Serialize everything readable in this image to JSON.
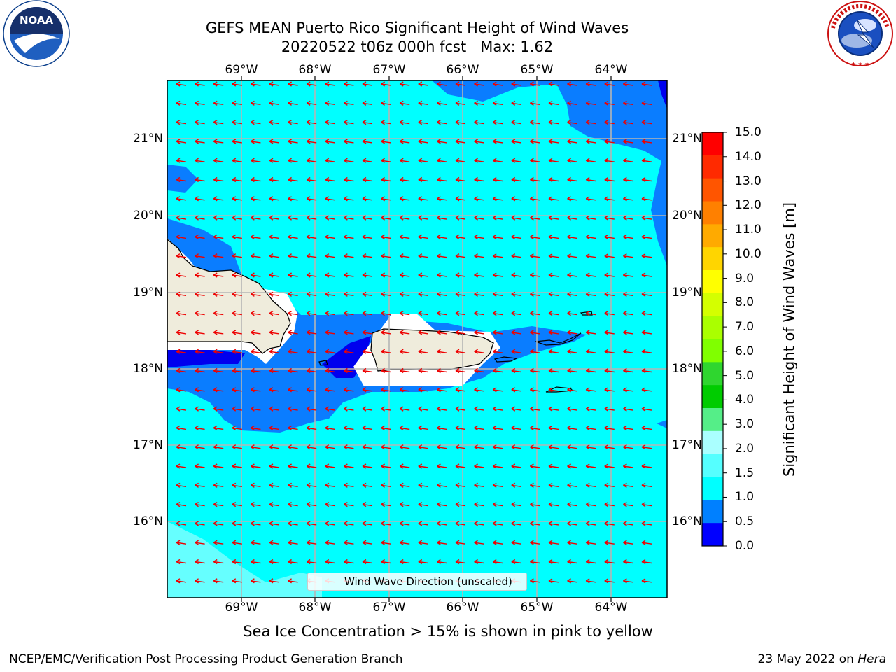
{
  "title": {
    "line1": "GEFS MEAN Puerto Rico Significant Height of Wind Waves",
    "line2": "20220522 t06z 000h fcst   Max: 1.62"
  },
  "logos": {
    "noaa": {
      "text": "NOAA",
      "ring_text": "NATIONAL OCEANIC AND ATMOSPHERIC ADMINISTRATION · U.S. DEPARTMENT OF COMMERCE"
    },
    "nws": {
      "ring_text": "NATIONAL WEATHER SERVICE"
    }
  },
  "map": {
    "lon_ticks": [
      "69°W",
      "68°W",
      "67°W",
      "66°W",
      "65°W",
      "64°W"
    ],
    "lat_ticks": [
      "21°N",
      "20°N",
      "19°N",
      "18°N",
      "17°N",
      "16°N"
    ],
    "legend": "Wind Wave Direction (unscaled)",
    "arrow_direction": "westward (from east)"
  },
  "colorbar": {
    "title": "Significant Height of Wind Waves [m]",
    "labels": [
      "15.0",
      "14.0",
      "13.0",
      "12.0",
      "11.0",
      "10.0",
      "9.0",
      "8.0",
      "7.0",
      "6.0",
      "5.0",
      "4.0",
      "3.0",
      "2.0",
      "1.5",
      "1.0",
      "0.5",
      "0.0"
    ],
    "colors": [
      "#ff0000",
      "#ff2a00",
      "#ff5500",
      "#ff8000",
      "#ffaa00",
      "#ffd500",
      "#ffff00",
      "#d4ff00",
      "#aaff00",
      "#80ff00",
      "#2fd62f",
      "#00cc00",
      "#55ee88",
      "#aaffff",
      "#55ffff",
      "#00ffff",
      "#0080ff",
      "#0000ff"
    ]
  },
  "colors": {
    "ocean_base": "#00ffff",
    "medium_band": "#0a7dff",
    "low_band": "#0000ee",
    "land": "#efecdc",
    "arrows": "#ee0000"
  },
  "note": "Sea Ice Concentration > 15% is shown in pink to yellow",
  "footer": {
    "left": "NCEP/EMC/Verification Post Processing Product Generation Branch",
    "right_prefix": "23 May 2022 on ",
    "right_host": "Hera"
  }
}
